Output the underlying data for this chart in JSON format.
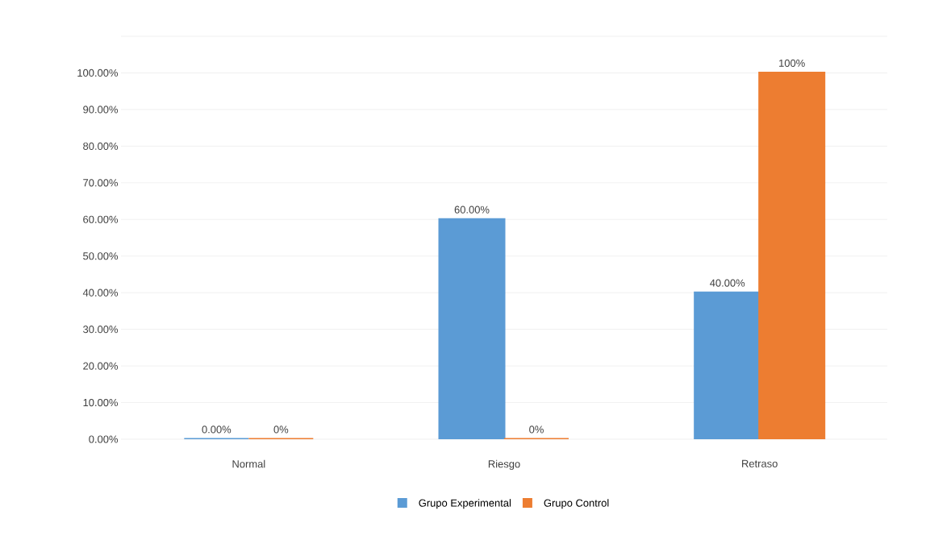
{
  "chart_data": {
    "type": "bar",
    "categories": [
      "Normal",
      "Riesgo",
      "Retraso"
    ],
    "series": [
      {
        "name": "Grupo Experimental",
        "color": "#5b9bd5",
        "values": [
          0,
          60,
          40
        ],
        "value_labels": [
          "0.00%",
          "60.00%",
          "40.00%"
        ]
      },
      {
        "name": "Grupo Control",
        "color": "#ed7d31",
        "values": [
          0,
          0,
          100
        ],
        "value_labels": [
          "0%",
          "0%",
          "100%"
        ]
      }
    ],
    "ylim": [
      0,
      110
    ],
    "yticks": [
      {
        "value": 0,
        "label": "0.00%"
      },
      {
        "value": 10,
        "label": "10.00%"
      },
      {
        "value": 20,
        "label": "20.00%"
      },
      {
        "value": 30,
        "label": "30.00%"
      },
      {
        "value": 40,
        "label": "40.00%"
      },
      {
        "value": 50,
        "label": "50.00%"
      },
      {
        "value": 60,
        "label": "60.00%"
      },
      {
        "value": 70,
        "label": "70.00%"
      },
      {
        "value": 80,
        "label": "80.00%"
      },
      {
        "value": 90,
        "label": "90.00%"
      },
      {
        "value": 100,
        "label": "100.00%"
      },
      {
        "value": 110,
        "label": null
      }
    ],
    "grid": "y",
    "legend": "bottom"
  }
}
